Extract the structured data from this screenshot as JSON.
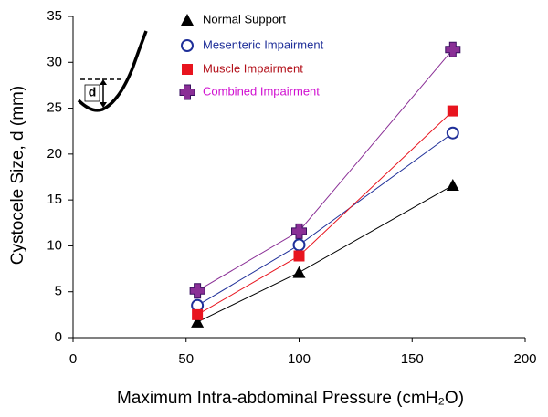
{
  "chart_data": {
    "type": "line",
    "x_label": "Maximum Intra-abdominal Pressure (cmH₂O)",
    "y_label": "Cystocele Size, d (mm)",
    "inset_label": "d",
    "x": [
      55,
      100,
      168
    ],
    "series": [
      {
        "name": "Normal Support",
        "color": "#000000",
        "label_color": "#000000",
        "marker": "triangle",
        "values": [
          1.7,
          7.1,
          16.6
        ]
      },
      {
        "name": "Mesenteric Impairment",
        "color": "#1f2f99",
        "label_color": "#1f2f99",
        "marker": "open-circle",
        "values": [
          3.5,
          10.1,
          22.3
        ]
      },
      {
        "name": "Muscle Impairment",
        "color": "#e8141e",
        "label_color": "#b3101a",
        "marker": "square",
        "values": [
          2.5,
          8.9,
          24.7
        ]
      },
      {
        "name": "Combined Impairment",
        "color": "#8a2f96",
        "label_color": "#d010d0",
        "marker": "cross",
        "values": [
          5.1,
          11.6,
          31.4
        ]
      }
    ],
    "xlim": [
      0,
      200
    ],
    "xticks": [
      0,
      50,
      100,
      150,
      200
    ],
    "ylim": [
      0,
      35
    ],
    "yticks": [
      0,
      5,
      10,
      15,
      20,
      25,
      30,
      35
    ],
    "grid": false
  }
}
